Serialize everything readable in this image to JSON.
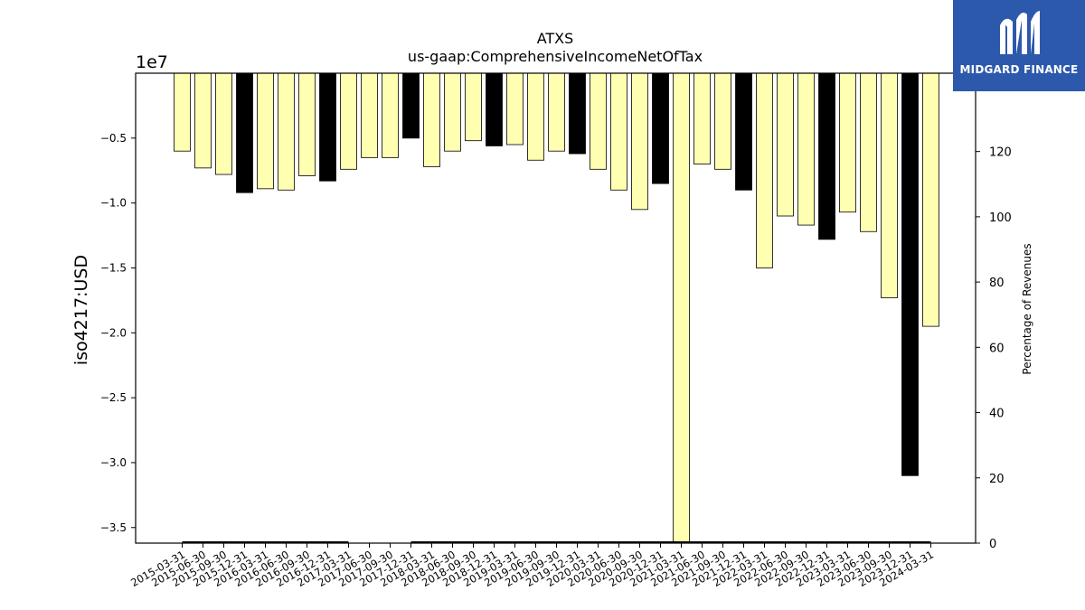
{
  "chart_data": {
    "type": "bar",
    "title": "ATXS",
    "subtitle": "us-gaap:ComprehensiveIncomeNetOfTax",
    "ylabel": "iso4217:USD",
    "y_offset_label": "1e7",
    "ylim": [
      -36200000,
      0
    ],
    "yticks": [
      -5000000,
      -10000000,
      -15000000,
      -20000000,
      -25000000,
      -30000000,
      -35000000
    ],
    "ytick_labels": [
      "−0.5",
      "−1.0",
      "−1.5",
      "−2.0",
      "−2.5",
      "−3.0",
      "−3.5"
    ],
    "y2label": "Percentage of Revenues",
    "y2lim": [
      0,
      144
    ],
    "y2ticks": [
      0,
      20,
      40,
      60,
      80,
      100,
      120
    ],
    "categories": [
      "2015-03-31",
      "2015-06-30",
      "2015-09-30",
      "2015-12-31",
      "2016-03-31",
      "2016-06-30",
      "2016-09-30",
      "2016-12-31",
      "2017-03-31",
      "2017-06-30",
      "2017-09-30",
      "2017-12-31",
      "2018-03-31",
      "2018-06-30",
      "2018-09-30",
      "2018-12-31",
      "2019-03-31",
      "2019-06-30",
      "2019-09-30",
      "2019-12-31",
      "2020-03-31",
      "2020-06-30",
      "2020-09-30",
      "2020-12-31",
      "2021-03-31",
      "2021-06-30",
      "2021-09-30",
      "2021-12-31",
      "2022-03-31",
      "2022-06-30",
      "2022-09-30",
      "2022-12-31",
      "2023-03-31",
      "2023-06-30",
      "2023-09-30",
      "2023-12-31",
      "2024-03-31"
    ],
    "values": [
      -6000000,
      -7300000,
      -7800000,
      -9200000,
      -8900000,
      -9000000,
      -7900000,
      -8300000,
      -7400000,
      -6500000,
      -6500000,
      -5000000,
      -7200000,
      -6000000,
      -5200000,
      -5600000,
      -5500000,
      -6700000,
      -6000000,
      -6200000,
      -7400000,
      -9000000,
      -10500000,
      -8500000,
      -36200000,
      -7000000,
      -7400000,
      -9000000,
      -15000000,
      -11000000,
      -11700000,
      -12800000,
      -10700000,
      -12200000,
      -17300000,
      -31000000,
      -19500000
    ],
    "bar_kinds": [
      "q",
      "q",
      "q",
      "a",
      "q",
      "q",
      "q",
      "a",
      "q",
      "q",
      "q",
      "a",
      "q",
      "q",
      "q",
      "a",
      "q",
      "q",
      "q",
      "a",
      "q",
      "q",
      "q",
      "a",
      "q",
      "q",
      "q",
      "a",
      "q",
      "q",
      "q",
      "a",
      "q",
      "q",
      "q",
      "a",
      "q"
    ],
    "colors": {
      "quarter": "#ffffb2",
      "annual": "#000000",
      "edge": "#000000"
    },
    "percentage_series": {
      "name": "",
      "values": [
        0,
        0,
        0,
        0,
        0,
        0,
        0,
        0,
        0,
        null,
        null,
        0,
        0,
        0,
        0,
        0,
        0,
        0,
        0,
        0,
        0,
        0,
        0,
        0,
        0,
        0,
        0,
        0,
        0,
        0,
        0,
        0,
        0,
        0,
        0,
        0,
        0
      ]
    },
    "grid": false,
    "legend": "none"
  },
  "logo": {
    "text": "MIDGARD FINANCE",
    "icon": "midgard-logo-icon"
  }
}
